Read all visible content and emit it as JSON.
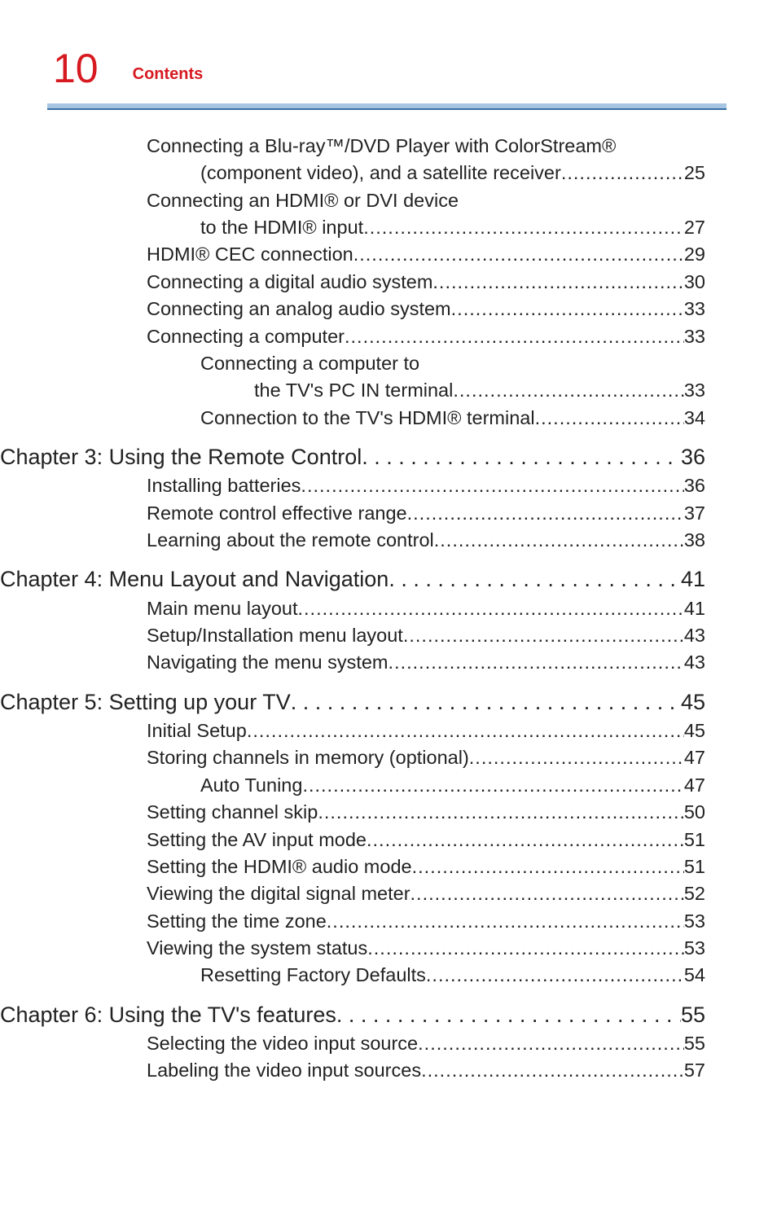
{
  "header": {
    "pageNumber": "10",
    "sectionLabel": "Contents"
  },
  "colors": {
    "accent": "#d71920",
    "barFill": "#a7c5e3",
    "barBorder": "#3a6fa4",
    "text": "#222222",
    "background": "#ffffff"
  },
  "toc": [
    {
      "cls": "lvl1 no-leader",
      "label": "Connecting a Blu-ray™/DVD Player with ColorStream®",
      "page": ""
    },
    {
      "cls": "l1wrap",
      "label": "(component video), and a satellite receiver",
      "page": "25"
    },
    {
      "cls": "lvl1 no-leader",
      "label": "Connecting an HDMI® or DVI device",
      "page": ""
    },
    {
      "cls": "l1wrap",
      "label": "to the HDMI® input",
      "page": "27"
    },
    {
      "cls": "lvl1",
      "label": "HDMI® CEC connection",
      "page": "29"
    },
    {
      "cls": "lvl1",
      "label": "Connecting a digital audio system",
      "page": "30"
    },
    {
      "cls": "lvl1",
      "label": "Connecting an analog audio system",
      "page": "33"
    },
    {
      "cls": "lvl1",
      "label": "Connecting a computer",
      "page": "33"
    },
    {
      "cls": "lvl2 no-leader",
      "label": "Connecting a computer to",
      "page": ""
    },
    {
      "cls": "lvl2",
      "pad": 132,
      "label": "the TV's PC IN terminal",
      "page": "33"
    },
    {
      "cls": "lvl2",
      "label": "Connection to the TV's HDMI® terminal",
      "page": "34"
    },
    {
      "cls": "chapter",
      "leader": "spaced",
      "label": "Chapter 3: Using the Remote Control",
      "page": " 36",
      "negml": 180
    },
    {
      "cls": "lvl1",
      "label": "Installing batteries",
      "page": "36"
    },
    {
      "cls": "lvl1",
      "label": "Remote control effective range",
      "page": "37"
    },
    {
      "cls": "lvl1",
      "label": "Learning about the remote control",
      "page": "38"
    },
    {
      "cls": "chapter",
      "leader": "spaced",
      "label": "Chapter 4: Menu Layout and Navigation",
      "page": " 41",
      "negml": 180
    },
    {
      "cls": "lvl1",
      "label": "Main menu layout",
      "page": "41"
    },
    {
      "cls": "lvl1",
      "label": "Setup/Installation menu layout",
      "page": "43"
    },
    {
      "cls": "lvl1",
      "label": "Navigating the menu system",
      "page": "43"
    },
    {
      "cls": "chapter",
      "leader": "spaced",
      "label": "Chapter 5: Setting up your TV",
      "page": " 45",
      "negml": 180
    },
    {
      "cls": "lvl1",
      "label": "Initial Setup",
      "page": "45"
    },
    {
      "cls": "lvl1",
      "label": "Storing channels in memory (optional)",
      "page": "47"
    },
    {
      "cls": "lvl2",
      "label": "Auto Tuning",
      "page": "47"
    },
    {
      "cls": "lvl1",
      "label": "Setting channel skip",
      "page": "50"
    },
    {
      "cls": "lvl1",
      "label": "Setting the AV input mode",
      "page": "51"
    },
    {
      "cls": "lvl1",
      "label": "Setting the HDMI® audio mode",
      "page": "51"
    },
    {
      "cls": "lvl1",
      "label": "Viewing the digital signal meter",
      "page": "52"
    },
    {
      "cls": "lvl1",
      "label": "Setting the time zone",
      "page": "53"
    },
    {
      "cls": "lvl1",
      "label": "Viewing the system status",
      "page": "53"
    },
    {
      "cls": "lvl2",
      "label": "Resetting Factory Defaults",
      "page": "54"
    },
    {
      "cls": "chapter",
      "leader": "spaced",
      "label": "Chapter 6: Using the TV's features",
      "page": " 55",
      "negml": 180
    },
    {
      "cls": "lvl1",
      "label": "Selecting the video input source",
      "page": "55"
    },
    {
      "cls": "lvl1",
      "label": "Labeling the video input sources",
      "page": "57"
    }
  ]
}
